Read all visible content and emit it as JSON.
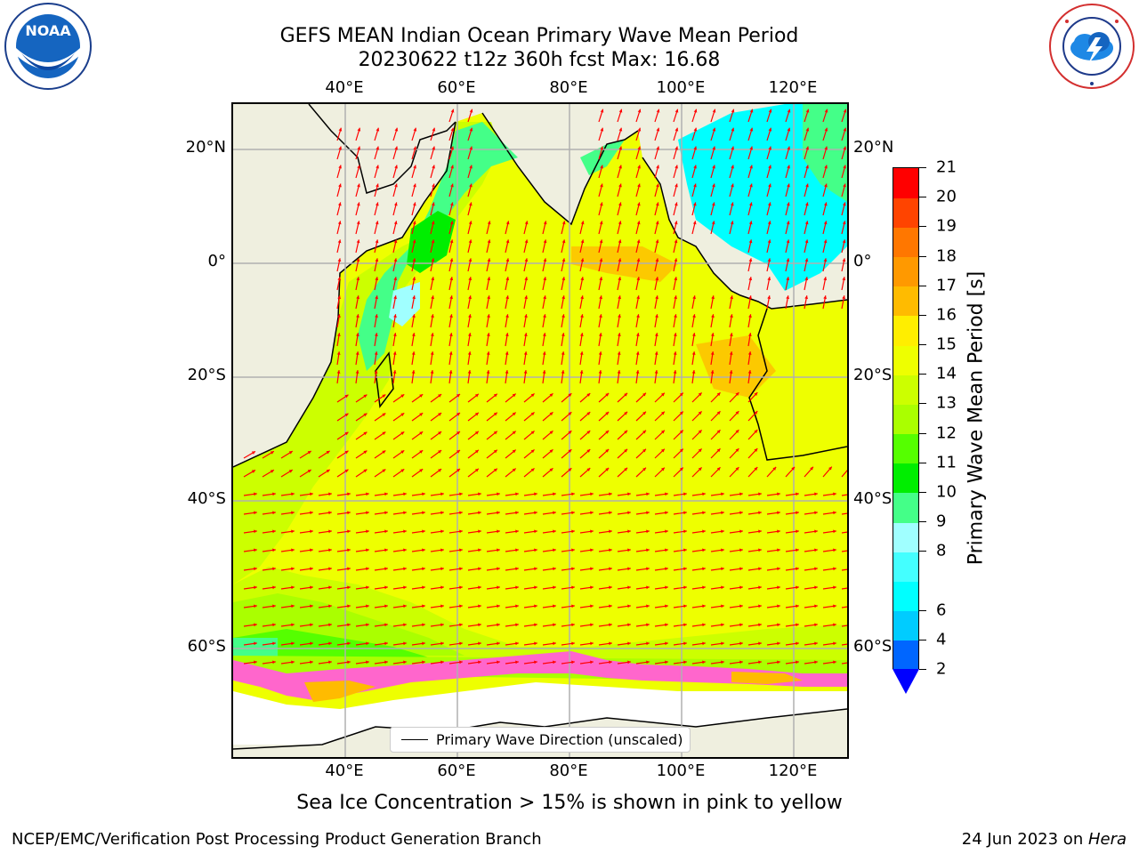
{
  "title": {
    "line1": "GEFS MEAN Indian Ocean Primary Wave Mean Period",
    "line2": "20230622 t12z 360h fcst   Max: 16.68"
  },
  "axes": {
    "lon_ticks": [
      "40°E",
      "60°E",
      "80°E",
      "100°E",
      "120°E"
    ],
    "lat_ticks": [
      "20°N",
      "0°",
      "20°S",
      "40°S",
      "60°S"
    ],
    "lon_values": [
      40,
      60,
      80,
      100,
      120
    ],
    "lat_values": [
      20,
      0,
      -20,
      -40,
      -60
    ]
  },
  "colorbar": {
    "label": "Primary Wave Mean Period [s]",
    "levels": [
      2,
      4,
      6,
      7,
      8,
      9,
      10,
      11,
      12,
      13,
      14,
      15,
      16,
      17,
      18,
      19,
      20,
      21
    ],
    "tick_labels": [
      "2",
      "4",
      "6",
      "8",
      "9",
      "10",
      "11",
      "12",
      "13",
      "14",
      "15",
      "16",
      "17",
      "18",
      "19",
      "20",
      "21"
    ],
    "colors": [
      "#0066ff",
      "#00ccff",
      "#00ffff",
      "#44ffff",
      "#a0ffff",
      "#44ff88",
      "#00ee00",
      "#55ff00",
      "#aaff00",
      "#ccff00",
      "#eeff00",
      "#ffee00",
      "#ffbb00",
      "#ff9900",
      "#ff7700",
      "#ff4400",
      "#ff0000"
    ],
    "extend_color": "#0000ff"
  },
  "legend": {
    "label": "Primary Wave Direction (unscaled)"
  },
  "subtitle": "Sea Ice Concentration > 15% is shown in pink to yellow",
  "footer": {
    "credit": "NCEP/EMC/Verification Post Processing Product Generation Branch",
    "date": "24 Jun 2023 on ",
    "machine": "Hera"
  },
  "logos": {
    "left": "noaa-logo",
    "right": "nws-logo"
  },
  "colors": {
    "land": "#efefdf",
    "arrow": "#ff0000",
    "grid": "#b0b0b0",
    "ice": "#ff66cc"
  }
}
